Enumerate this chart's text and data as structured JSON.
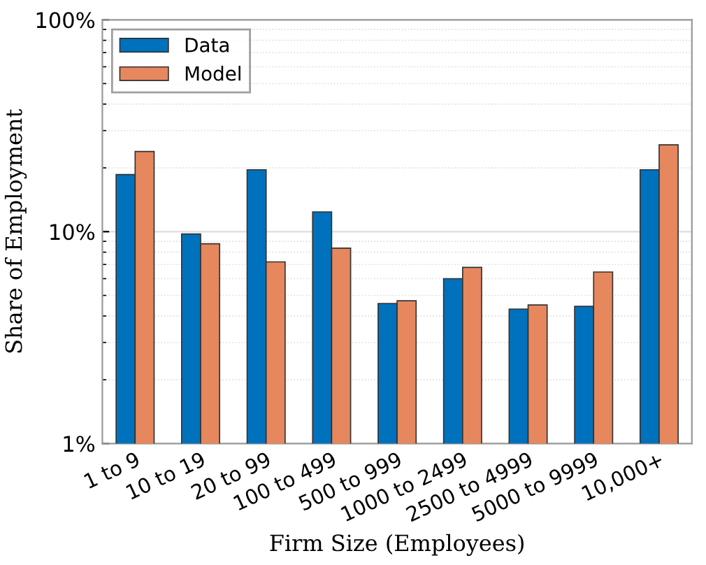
{
  "chart_data": {
    "type": "bar",
    "xlabel": "Firm Size (Employees)",
    "ylabel": "Share of Employment",
    "categories": [
      "1 to 9",
      "10 to 19",
      "20 to 99",
      "100 to 499",
      "500 to 999",
      "1000 to 2499",
      "2500 to 4999",
      "5000 to 9999",
      "10,000+"
    ],
    "series": [
      {
        "name": "Data",
        "color": "#0072bd",
        "values": [
          18.6,
          9.75,
          19.6,
          12.4,
          4.58,
          6.0,
          4.31,
          4.44,
          19.6
        ]
      },
      {
        "name": "Model",
        "color": "#e6875e",
        "values": [
          23.9,
          8.76,
          7.2,
          8.36,
          4.72,
          6.78,
          4.51,
          6.45,
          25.7
        ]
      }
    ],
    "log": "y",
    "ylim": [
      1,
      100
    ],
    "yticks": [
      {
        "value": 1,
        "label": "1%"
      },
      {
        "value": 10,
        "label": "10%"
      },
      {
        "value": 100,
        "label": "100%"
      }
    ],
    "grid": "y",
    "legend": "top left"
  }
}
